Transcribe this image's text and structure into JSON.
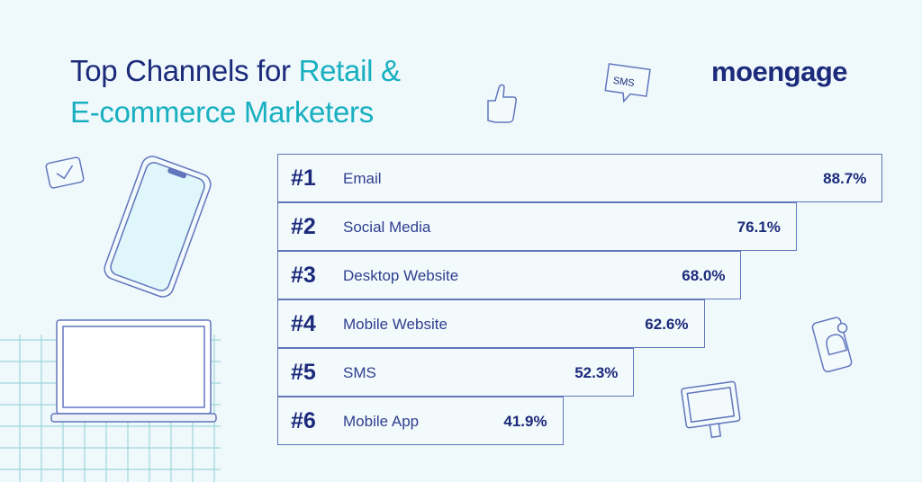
{
  "title": {
    "part1": "Top Channels for ",
    "part2": "Retail &",
    "line2": "E-commerce Marketers"
  },
  "logo": "moengage",
  "sms_bubble": "SMS",
  "colors": {
    "navy": "#1b2a7a",
    "teal": "#18b0c0",
    "border": "#6176bd",
    "background": "#eff8fb"
  },
  "chart_data": {
    "type": "bar",
    "orientation": "horizontal",
    "title": "Top Channels for Retail & E-commerce Marketers",
    "ranks": [
      "#1",
      "#2",
      "#3",
      "#4",
      "#5",
      "#6"
    ],
    "categories": [
      "Email",
      "Social Media",
      "Desktop Website",
      "Mobile Website",
      "SMS",
      "Mobile App"
    ],
    "values": [
      88.7,
      76.1,
      68.0,
      62.6,
      52.3,
      41.9
    ],
    "value_labels": [
      "88.7%",
      "76.1%",
      "68.0%",
      "62.6%",
      "52.3%",
      "41.9%"
    ],
    "unit": "%",
    "xlim": [
      0,
      100
    ]
  }
}
